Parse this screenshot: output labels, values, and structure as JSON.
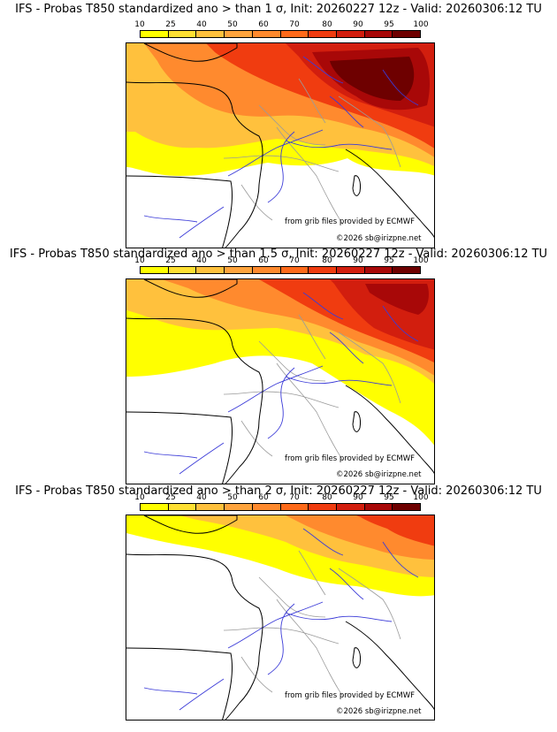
{
  "panels": [
    {
      "title": "IFS - Probas T850  standardized ano > than 1 σ, Init: 20260227 12z - Valid: 20260306:12 TU",
      "credit_source": "from grib files provided by ECMWF",
      "credit_copyright": "©2026 sb@irizpne.net"
    },
    {
      "title": "IFS - Probas T850  standardized ano > than 1.5 σ, Init: 20260227 12z - Valid: 20260306:12 TU",
      "credit_source": "from grib files provided by ECMWF",
      "credit_copyright": "©2026 sb@irizpne.net"
    },
    {
      "title": "IFS - Probas T850  standardized ano > than 2 σ, Init: 20260227 12z - Valid: 20260306:12 TU",
      "credit_source": "from grib files provided by ECMWF",
      "credit_copyright": "©2026 sb@irizpne.net"
    }
  ],
  "colorbar": {
    "ticks": [
      "10",
      "25",
      "40",
      "50",
      "60",
      "70",
      "80",
      "90",
      "95",
      "100"
    ],
    "colors": [
      "#ffff00",
      "#ffe033",
      "#ffc13d",
      "#ffa43d",
      "#ff8a2e",
      "#ff6a1a",
      "#f03c10",
      "#d21e0e",
      "#a80808",
      "#6e0000"
    ]
  },
  "colors": {
    "coastline": "#000000",
    "rivers": "#3b3bd8",
    "admin_borders": "#9a9a9a"
  }
}
